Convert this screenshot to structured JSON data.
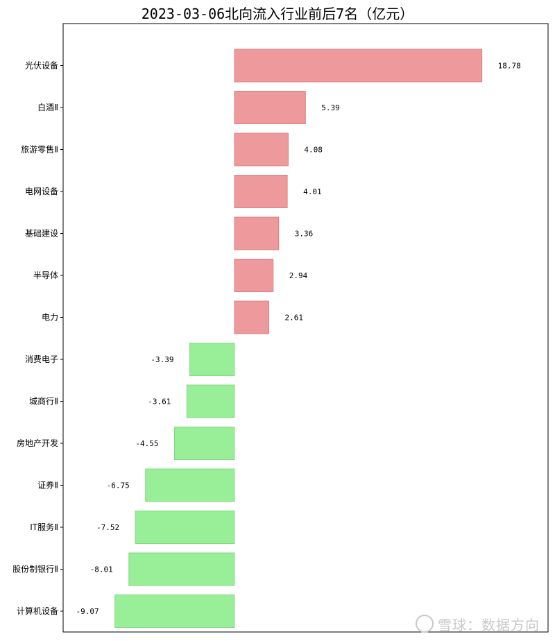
{
  "chart_data": {
    "type": "bar",
    "orientation": "horizontal",
    "title": "2023-03-06北向流入行业前后7名（亿元）",
    "categories": [
      "光伏设备",
      "白酒Ⅱ",
      "旅游零售Ⅱ",
      "电网设备",
      "基础建设",
      "半导体",
      "电力",
      "消费电子",
      "城商行Ⅱ",
      "房地产开发",
      "证券Ⅱ",
      "IT服务Ⅱ",
      "股份制银行Ⅱ",
      "计算机设备"
    ],
    "values": [
      18.78,
      5.39,
      4.08,
      4.01,
      3.36,
      2.94,
      2.61,
      -3.39,
      -3.61,
      -4.55,
      -6.75,
      -7.52,
      -8.01,
      -9.07
    ],
    "value_labels": [
      "18.78",
      "5.39",
      "4.08",
      "4.01",
      "3.36",
      "2.94",
      "2.61",
      "-3.39",
      "-3.61",
      "-4.55",
      "-6.75",
      "-7.52",
      "-8.01",
      "-9.07"
    ],
    "xlim": [
      -13.0,
      23.8
    ],
    "grid": false,
    "colors": {
      "positive": "#ee9a9c",
      "negative": "#99ee98",
      "positive_edge": "#d98385",
      "negative_edge": "#84d883"
    }
  },
  "watermark": {
    "text": "雪球：数据方向",
    "logo": "snowball-logo-icon"
  }
}
